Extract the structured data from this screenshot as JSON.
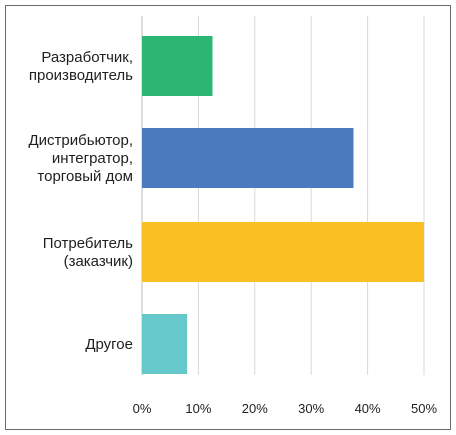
{
  "chart_data": {
    "type": "bar",
    "orientation": "horizontal",
    "categories": [
      [
        "Разработчик,",
        "производитель"
      ],
      [
        "Дистрибьютор,",
        "интегратор,",
        "торговый дом"
      ],
      [
        "Потребитель",
        "(заказчик)"
      ],
      [
        "Другое"
      ]
    ],
    "values": [
      12.5,
      37.5,
      50,
      8
    ],
    "colors": [
      "#2bb673",
      "#4b7bbf",
      "#fbbf24",
      "#66c8cb"
    ],
    "xlim": [
      0,
      50
    ],
    "xticks": [
      0,
      10,
      20,
      30,
      40,
      50
    ],
    "tick_labels": [
      "0%",
      "10%",
      "20%",
      "30%",
      "40%",
      "50%"
    ],
    "grid": true,
    "title": "",
    "xlabel": "",
    "ylabel": ""
  }
}
